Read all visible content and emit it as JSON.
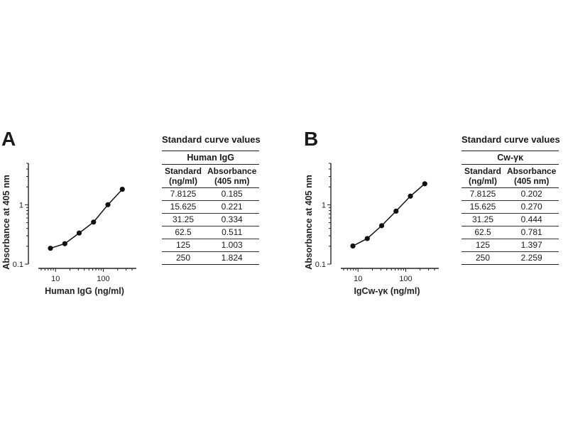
{
  "chart_data": [
    {
      "type": "line",
      "panel": "A",
      "x": [
        7.8125,
        15.625,
        31.25,
        62.5,
        125,
        250
      ],
      "y": [
        0.185,
        0.221,
        0.334,
        0.511,
        1.003,
        1.824
      ],
      "xlabel": "Human IgG (ng/ml)",
      "ylabel": "Absorbance at 405 nm",
      "xscale": "log",
      "yscale": "log",
      "xlim": [
        5,
        400
      ],
      "ylim": [
        0.1,
        5
      ],
      "xticks": [
        {
          "v": 10,
          "label": "10"
        },
        {
          "v": 100,
          "label": "100"
        }
      ],
      "yticks": [
        {
          "v": 0.1,
          "label": "0.1"
        },
        {
          "v": 1,
          "label": "1"
        }
      ],
      "table": {
        "title": "Standard curve values",
        "group": "Human IgG",
        "col1": [
          "Standard",
          "(ng/ml)"
        ],
        "col2": [
          "Absorbance",
          "(405 nm)"
        ],
        "rows": [
          [
            "7.8125",
            "0.185"
          ],
          [
            "15.625",
            "0.221"
          ],
          [
            "31.25",
            "0.334"
          ],
          [
            "62.5",
            "0.511"
          ],
          [
            "125",
            "1.003"
          ],
          [
            "250",
            "1.824"
          ]
        ]
      }
    },
    {
      "type": "line",
      "panel": "B",
      "x": [
        7.8125,
        15.625,
        31.25,
        62.5,
        125,
        250
      ],
      "y": [
        0.202,
        0.27,
        0.444,
        0.781,
        1.397,
        2.259
      ],
      "xlabel": "IgCw-γκ (ng/ml)",
      "ylabel": "Absorbance at 405 nm",
      "xscale": "log",
      "yscale": "log",
      "xlim": [
        5,
        400
      ],
      "ylim": [
        0.1,
        5
      ],
      "xticks": [
        {
          "v": 10,
          "label": "10"
        },
        {
          "v": 100,
          "label": "100"
        }
      ],
      "yticks": [
        {
          "v": 0.1,
          "label": "0.1"
        },
        {
          "v": 1,
          "label": "1"
        }
      ],
      "table": {
        "title": "Standard curve values",
        "group": "Cw-γκ",
        "col1": [
          "Standard",
          "(ng/ml)"
        ],
        "col2": [
          "Absorbance",
          "(405 nm)"
        ],
        "rows": [
          [
            "7.8125",
            "0.202"
          ],
          [
            "15.625",
            "0.270"
          ],
          [
            "31.25",
            "0.444"
          ],
          [
            "62.5",
            "0.781"
          ],
          [
            "125",
            "1.397"
          ],
          [
            "250",
            "2.259"
          ]
        ]
      }
    }
  ]
}
